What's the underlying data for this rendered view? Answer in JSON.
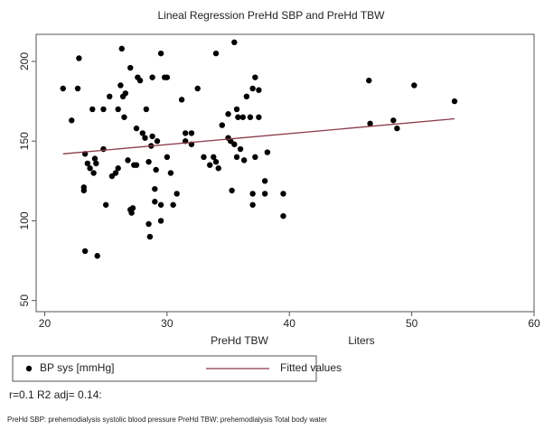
{
  "chart_data": {
    "type": "scatter",
    "title": "Lineal Regression PreHd SBP and PreHd TBW",
    "xlabel": "PreHd TBW",
    "xunit": "Liters",
    "xlim": [
      19.3,
      60
    ],
    "ylim": [
      43,
      217
    ],
    "xticks": [
      20,
      30,
      40,
      50,
      60
    ],
    "yticks": [
      50,
      100,
      150,
      200
    ],
    "grid": false,
    "legend": "bottom",
    "series": [
      {
        "name": "BP sys [mmHg]",
        "color": "#000000",
        "type": "scatter",
        "x": [
          21.5,
          22.2,
          22.7,
          22.8,
          23.3,
          23.2,
          23.2,
          23.3,
          23.5,
          23.7,
          23.9,
          24,
          24.1,
          24.2,
          24.3,
          24.8,
          24.8,
          25,
          25.3,
          25.5,
          25.8,
          26,
          26.2,
          26,
          26.3,
          26.5,
          26.4,
          26.6,
          26.8,
          27,
          27,
          27.1,
          27.2,
          27.3,
          27.5,
          27.6,
          27.8,
          27.5,
          28,
          28.2,
          28.3,
          28.5,
          28.6,
          28.5,
          28.7,
          28.8,
          28.8,
          29,
          29,
          29.1,
          29.2,
          29.5,
          29.5,
          29.5,
          29.8,
          30,
          30,
          30.3,
          30.5,
          30.8,
          31.2,
          31.5,
          31.5,
          32,
          32,
          32.5,
          33,
          33.5,
          33.8,
          34,
          34,
          34.2,
          34.5,
          35,
          35,
          35.2,
          35.3,
          35.5,
          35.5,
          35.7,
          35.7,
          35.8,
          36,
          36.2,
          36.3,
          36.5,
          36.8,
          37,
          37,
          37,
          37.2,
          37.2,
          37.5,
          37.5,
          38,
          38,
          38.2,
          39.5,
          39.5,
          46.5,
          46.6,
          48.5,
          48.8,
          50.2,
          53.5
        ],
        "values": [
          183,
          163,
          183,
          202,
          142,
          121,
          119,
          81,
          136,
          133,
          170,
          130,
          139,
          136,
          78,
          145,
          170,
          110,
          178,
          128,
          130,
          133,
          185,
          170,
          208,
          165,
          178,
          180,
          138,
          196,
          107,
          105,
          108,
          135,
          135,
          190,
          188,
          158,
          155,
          152,
          170,
          98,
          90,
          137,
          147,
          153,
          190,
          120,
          112,
          132,
          150,
          100,
          110,
          205,
          190,
          190,
          140,
          130,
          110,
          117,
          176,
          150,
          155,
          155,
          148,
          183,
          140,
          135,
          140,
          205,
          137,
          133,
          160,
          167,
          152,
          150,
          119,
          212,
          148,
          140,
          170,
          165,
          145,
          165,
          138,
          178,
          165,
          183,
          110,
          117,
          190,
          140,
          182,
          165,
          125,
          117,
          143,
          117,
          103,
          188,
          161,
          163,
          158,
          185,
          175
        ]
      },
      {
        "name": "Fitted values",
        "color": "#8b3a4a",
        "type": "line",
        "x": [
          21.5,
          53.5
        ],
        "values": [
          142,
          164
        ]
      }
    ],
    "notes": "r=0.1   R2 adj= 0.14:",
    "footnote": "PreHd SBP: prehemodialysis systolic blood pressure    PreHd TBW: prehemodialysis Total body water"
  }
}
